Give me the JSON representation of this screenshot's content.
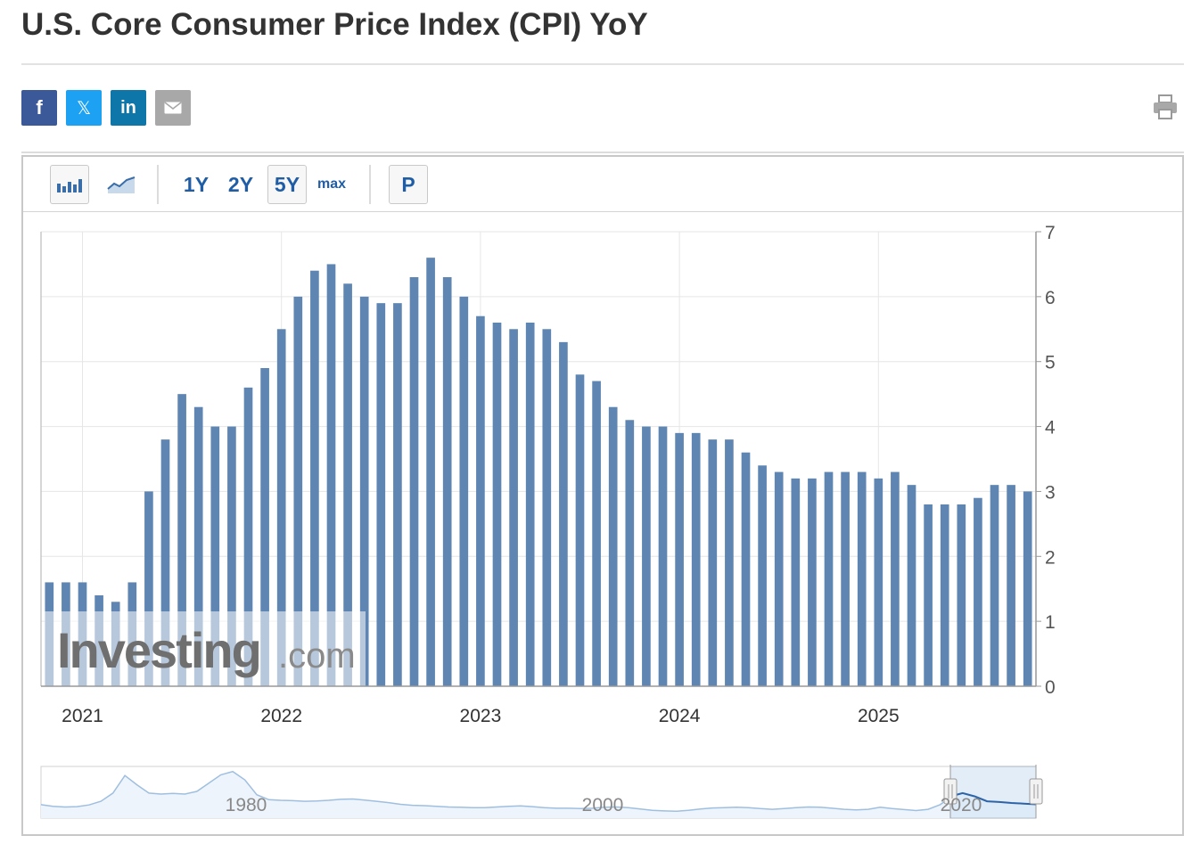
{
  "page": {
    "title": "U.S. Core Consumer Price Index (CPI) YoY"
  },
  "share": {
    "facebook": "f",
    "twitter": "𝕏",
    "linkedin": "in",
    "email_icon": "envelope-icon",
    "print_icon": "printer-icon"
  },
  "toolbar": {
    "bar_icon": "bar-chart-icon",
    "line_icon": "line-chart-icon",
    "ranges": [
      "1Y",
      "2Y",
      "5Y",
      "max"
    ],
    "active_range": "5Y",
    "p_label": "P"
  },
  "watermark": {
    "brand": "Investing",
    "suffix": ".com"
  },
  "colors": {
    "bar": "#5f86b3",
    "grid": "#e6e6e6",
    "nav_line": "#9fbfe0",
    "nav_fill": "#d7e6f6",
    "accent": "#1f5da6"
  },
  "chart_data": {
    "type": "bar",
    "title": "U.S. Core Consumer Price Index (CPI) YoY",
    "xlabel": "",
    "ylabel": "",
    "ylim": [
      0,
      7
    ],
    "y_ticks": [
      0,
      1,
      2,
      3,
      4,
      5,
      6,
      7
    ],
    "y_axis_position": "right",
    "x_tick_labels": [
      {
        "label": "2021",
        "index": 2
      },
      {
        "label": "2022",
        "index": 14
      },
      {
        "label": "2023",
        "index": 26
      },
      {
        "label": "2024",
        "index": 38
      },
      {
        "label": "2025",
        "index": 50
      }
    ],
    "values": [
      1.6,
      1.6,
      1.6,
      1.4,
      1.3,
      1.6,
      3.0,
      3.8,
      4.5,
      4.3,
      4.0,
      4.0,
      4.6,
      4.9,
      5.5,
      6.0,
      6.4,
      6.5,
      6.2,
      6.0,
      5.9,
      5.9,
      6.3,
      6.6,
      6.3,
      6.0,
      5.7,
      5.6,
      5.5,
      5.6,
      5.5,
      5.3,
      4.8,
      4.7,
      4.3,
      4.1,
      4.0,
      4.0,
      3.9,
      3.9,
      3.8,
      3.8,
      3.6,
      3.4,
      3.3,
      3.2,
      3.2,
      3.3,
      3.3,
      3.3,
      3.2,
      3.3,
      3.1,
      2.8,
      2.8,
      2.8,
      2.9,
      3.1,
      3.1,
      3.0
    ],
    "navigator": {
      "labels": [
        "1980",
        "2000",
        "2020"
      ],
      "values": [
        3.0,
        2.5,
        2.3,
        2.4,
        2.9,
        4.0,
        6.5,
        11.8,
        9.0,
        6.5,
        6.2,
        6.4,
        6.2,
        7.0,
        9.5,
        12.0,
        13.0,
        10.5,
        6.0,
        4.5,
        4.3,
        4.2,
        4.0,
        4.1,
        4.3,
        4.6,
        4.7,
        4.4,
        4.0,
        3.6,
        3.1,
        2.8,
        2.7,
        2.5,
        2.3,
        2.2,
        2.1,
        2.1,
        2.3,
        2.5,
        2.6,
        2.4,
        2.1,
        1.9,
        1.9,
        1.8,
        1.9,
        2.2,
        2.3,
        2.1,
        1.7,
        1.3,
        1.1,
        1.0,
        1.3,
        1.7,
        2.0,
        2.1,
        2.2,
        2.1,
        1.8,
        1.6,
        1.8,
        2.1,
        2.3,
        2.2,
        1.9,
        1.6,
        1.4,
        1.6,
        2.2,
        1.8,
        1.5,
        1.2,
        1.6,
        3.0,
        5.5,
        6.5,
        5.5,
        4.0,
        3.8,
        3.5,
        3.3,
        3.1
      ]
    }
  }
}
